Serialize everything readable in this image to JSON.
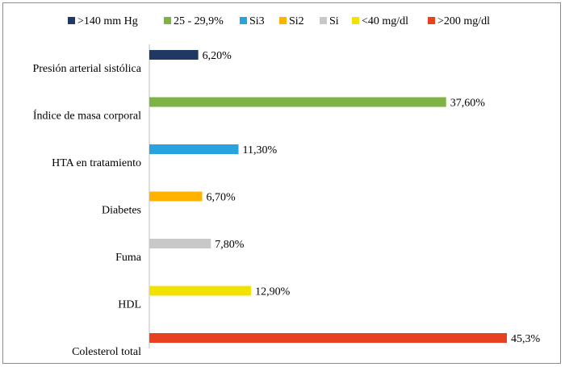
{
  "chart_data": {
    "type": "bar",
    "orientation": "horizontal",
    "categories": [
      "Presión arterial sistólica",
      "Índice de masa corporal",
      "HTA en tratamiento",
      "Diabetes",
      "Fuma",
      "HDL",
      "Colesterol total"
    ],
    "series": [
      {
        "name": ">140 mm Hg",
        "color": "#1f3864",
        "values": [
          6.2,
          null,
          null,
          null,
          null,
          null,
          null
        ]
      },
      {
        "name": "25 - 29,9%",
        "color": "#7cb342",
        "values": [
          null,
          37.6,
          null,
          null,
          null,
          null,
          null
        ]
      },
      {
        "name": "Si3",
        "color": "#29a3e0",
        "values": [
          null,
          null,
          11.3,
          null,
          null,
          null,
          null
        ]
      },
      {
        "name": "Si2",
        "color": "#ffb300",
        "values": [
          null,
          null,
          null,
          6.7,
          null,
          null,
          null
        ]
      },
      {
        "name": "Si",
        "color": "#c8c8c8",
        "values": [
          null,
          null,
          null,
          null,
          7.8,
          null,
          null
        ]
      },
      {
        "name": "<40 mg/dl",
        "color": "#f2e200",
        "values": [
          null,
          null,
          null,
          null,
          null,
          12.9,
          null
        ]
      },
      {
        "name": ">200 mg/dl",
        "color": "#e8411f",
        "values": [
          null,
          null,
          null,
          null,
          null,
          null,
          45.3
        ]
      }
    ],
    "data_labels": [
      "6,20%",
      "37,60%",
      "11,30%",
      "6,70%",
      "7,80%",
      "12,90%",
      "45,3%"
    ],
    "xlim": [
      0,
      50
    ],
    "grid": false,
    "legend_position": "top"
  }
}
